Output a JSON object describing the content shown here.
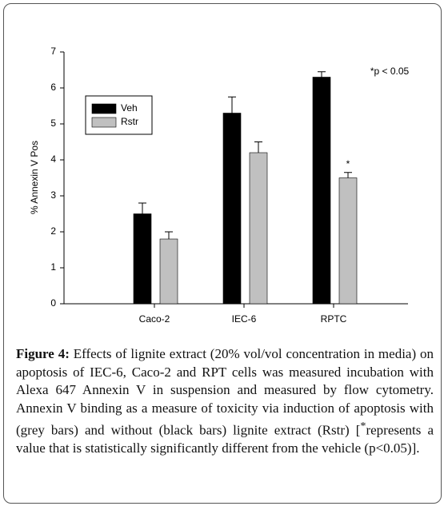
{
  "chart_data": {
    "type": "bar",
    "y_label": "% Annexin V Pos",
    "categories": [
      "Caco-2",
      "IEC-6",
      "RPTC"
    ],
    "series": [
      {
        "name": "Veh",
        "color": "#000000",
        "values": [
          2.5,
          5.3,
          6.3
        ],
        "errors": [
          0.3,
          0.45,
          0.15
        ]
      },
      {
        "name": "Rstr",
        "color": "#c0c0c0",
        "values": [
          1.8,
          4.2,
          3.5
        ],
        "errors": [
          0.2,
          0.3,
          0.15
        ]
      }
    ],
    "ylim": [
      0,
      7
    ],
    "yticks": [
      0,
      1,
      2,
      3,
      4,
      5,
      6,
      7
    ],
    "annotation": "*p < 0.05",
    "significance_marker": "*"
  },
  "caption": {
    "label": "Figure 4:",
    "text_before": " Effects of lignite extract (20% vol/vol concentration in media) on apoptosis of IEC-6, Caco-2 and RPT cells was measured incubation with Alexa 647 Annexin V in suspension and measured by flow cytometry. Annexin V binding as a measure of toxicity via induction of apoptosis with (grey bars) and without (black bars) lignite extract (Rstr) [",
    "superscript": "*",
    "text_after": "represents a value that is statistically significantly different from the vehicle (p<0.05)]."
  }
}
